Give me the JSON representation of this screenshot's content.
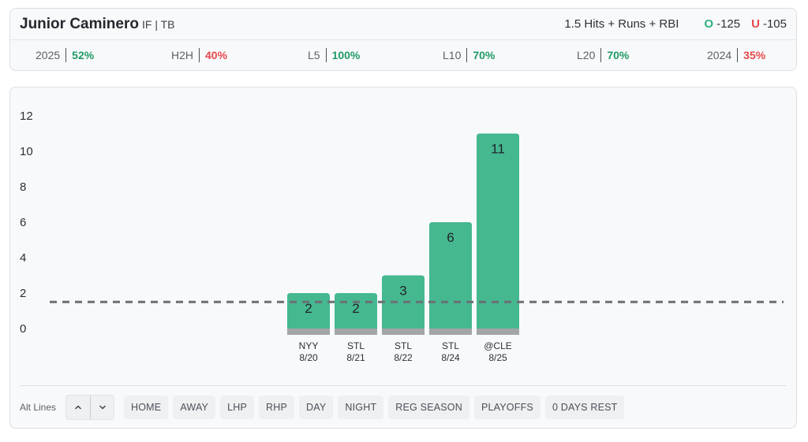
{
  "header": {
    "player_name": "Junior Caminero",
    "player_meta": "IF | TB",
    "prop": "1.5 Hits + Runs + RBI",
    "over": {
      "letter": "O",
      "odds": "-125"
    },
    "under": {
      "letter": "U",
      "odds": "-105"
    }
  },
  "stats": [
    {
      "label": "2025",
      "value": "52%",
      "status": "good"
    },
    {
      "label": "H2H",
      "value": "40%",
      "status": "bad"
    },
    {
      "label": "L5",
      "value": "100%",
      "status": "good"
    },
    {
      "label": "L10",
      "value": "70%",
      "status": "good"
    },
    {
      "label": "L20",
      "value": "70%",
      "status": "good"
    },
    {
      "label": "2024",
      "value": "35%",
      "status": "bad"
    }
  ],
  "chart_data": {
    "type": "bar",
    "categories": [
      "NYY 8/20",
      "STL 8/21",
      "STL 8/22",
      "STL 8/24",
      "@CLE 8/25"
    ],
    "opponents": [
      "NYY",
      "STL",
      "STL",
      "STL",
      "@CLE"
    ],
    "dates": [
      "8/20",
      "8/21",
      "8/22",
      "8/24",
      "8/25"
    ],
    "values": [
      2,
      2,
      3,
      6,
      11
    ],
    "line": 1.5,
    "yticks": [
      0,
      2,
      4,
      6,
      8,
      10,
      12
    ],
    "ylim": [
      0,
      12
    ],
    "grid": false,
    "colors": {
      "hit": "#45b890",
      "base": "#a3a5a8",
      "line": "#6b6f74"
    }
  },
  "filters": {
    "alt_lines_label": "Alt Lines",
    "up_icon": "chevron-up-icon",
    "down_icon": "chevron-down-icon",
    "chips": [
      "HOME",
      "AWAY",
      "LHP",
      "RHP",
      "DAY",
      "NIGHT",
      "REG SEASON",
      "PLAYOFFS",
      "0 DAYS REST"
    ]
  }
}
